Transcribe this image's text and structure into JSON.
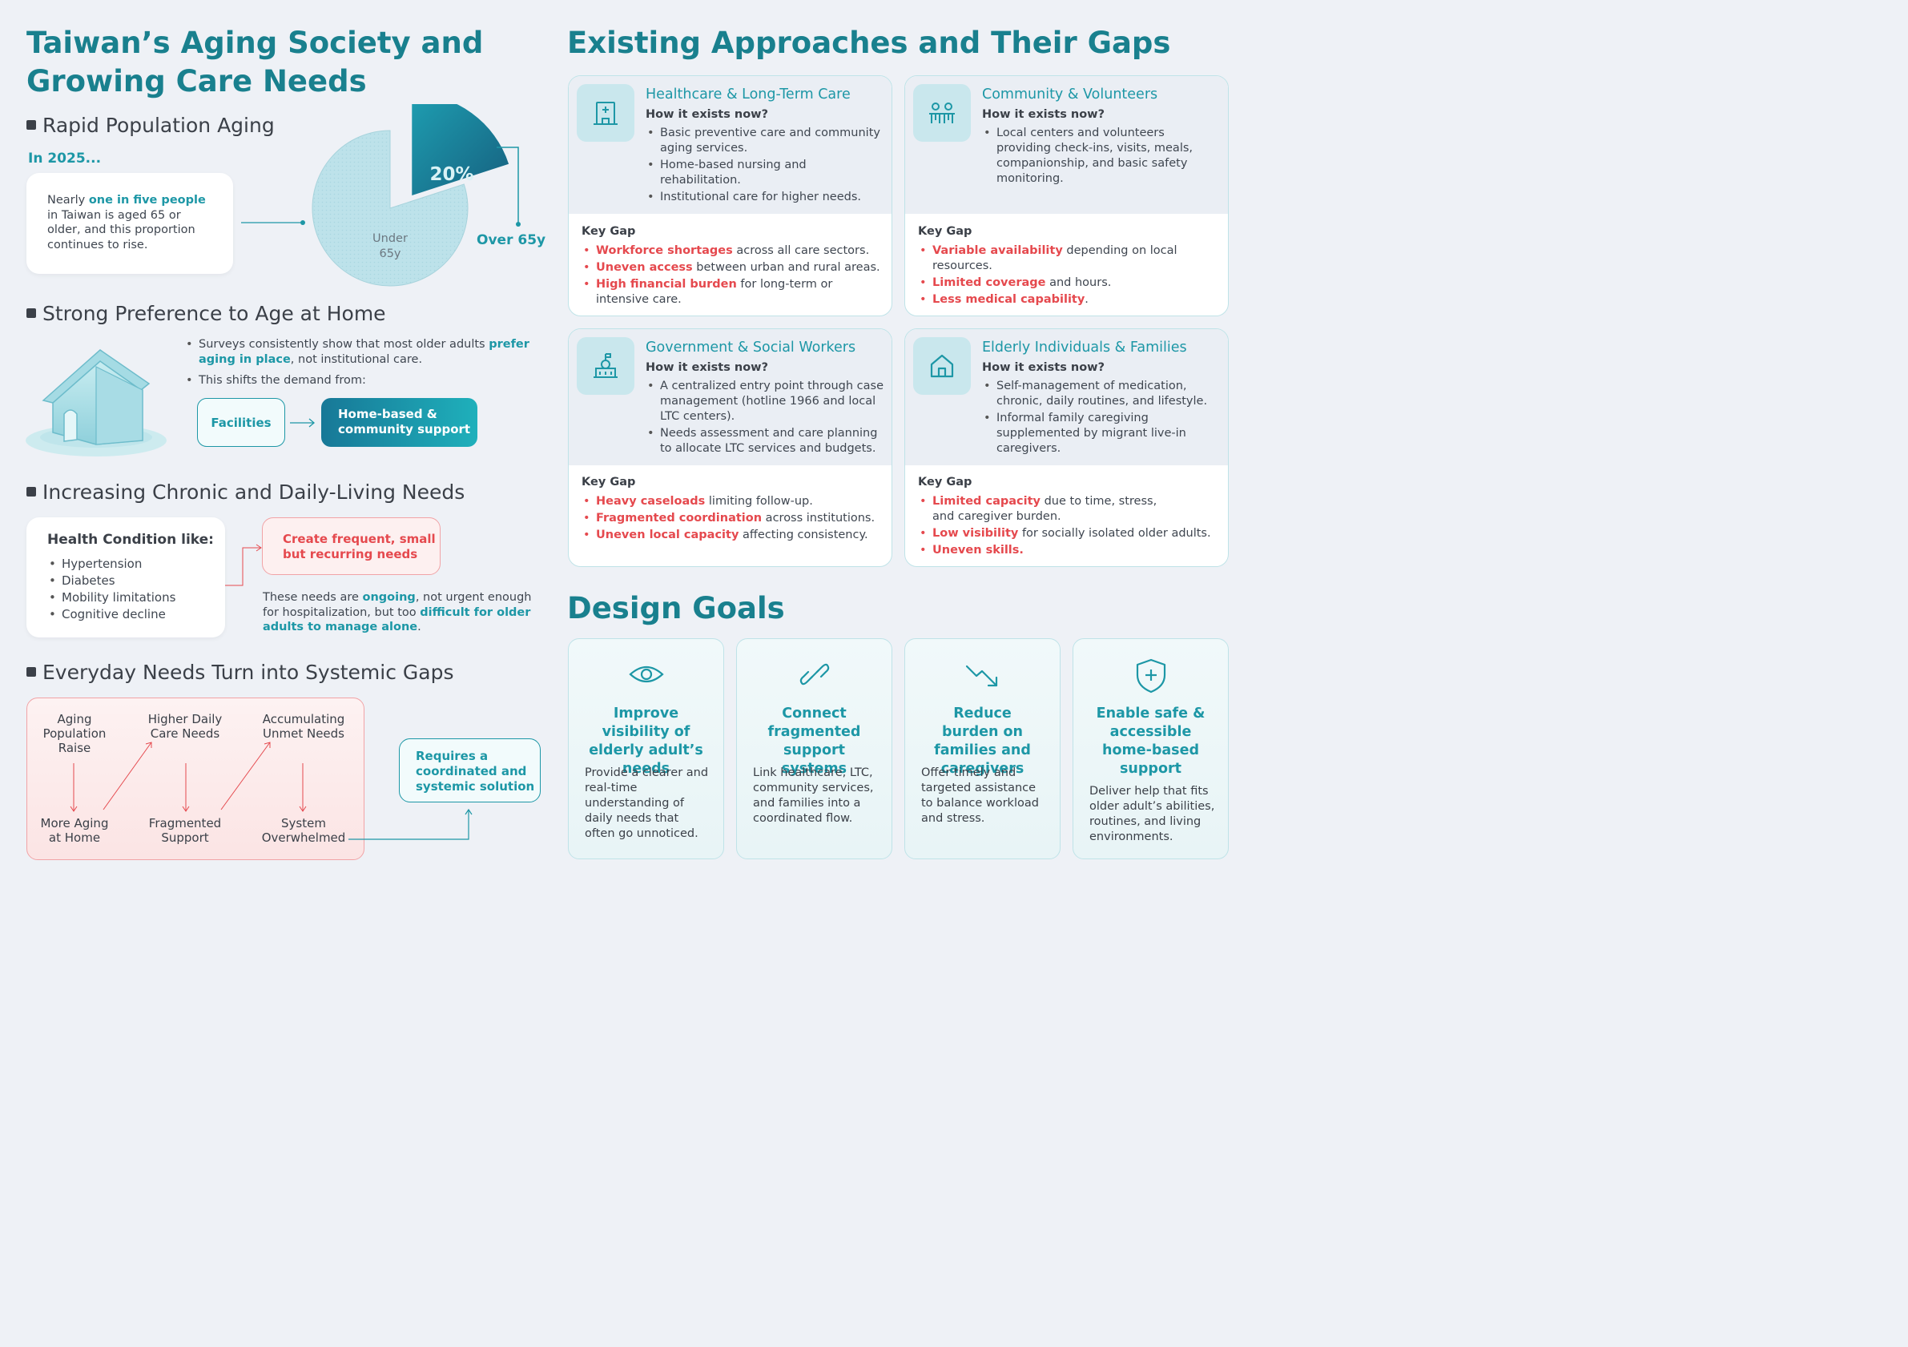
{
  "left": {
    "title_line1": "Taiwan’s Aging Society and",
    "title_line2": "Growing Care Needs",
    "s1": {
      "heading": "Rapid Population Aging",
      "year": "In 2025...",
      "card_pre": "Nearly ",
      "card_hl": "one in five people",
      "card_post": " in Taiwan is aged 65 or older, and this proportion continues to rise.",
      "pie_value": 20,
      "pie_pct": "20%",
      "under_l1": "Under",
      "under_l2": "65y",
      "over": "Over 65y"
    },
    "s2": {
      "heading": "Strong Preference to Age at Home",
      "b1_pre": "Surveys consistently show that most older adults ",
      "b1_hl": "prefer aging in place",
      "b1_post": ", not institutional care.",
      "b2": "This shifts the demand from:",
      "from": "Facilities",
      "to_l1": "Home-based &",
      "to_l2": "community support"
    },
    "s3": {
      "heading": "Increasing Chronic and Daily-Living Needs",
      "card_title": "Health Condition like:",
      "conditions": [
        "Hypertension",
        "Diabetes",
        "Mobility limitations",
        "Cognitive decline"
      ],
      "pink_l1": "Create frequent, small",
      "pink_l2": "but recurring needs",
      "n1": "These needs are ",
      "n_hl1": "ongoing",
      "n2": ", not urgent enough for hospitalization, but too ",
      "n_hl2": "difficult for older adults to manage alone",
      "n3": "."
    },
    "s4": {
      "heading": "Everyday Needs Turn into Systemic Gaps",
      "top": [
        "Aging\nPopulation\nRaise",
        "Higher Daily\nCare Needs",
        "Accumulating\nUnmet Needs"
      ],
      "bottom": [
        "More Aging\nat Home",
        "Fragmented\nSupport",
        "System\nOverwhelmed"
      ],
      "solution_l1": "Requires a",
      "solution_l2": "coordinated and",
      "solution_l3": "systemic solution"
    }
  },
  "right": {
    "title": "Existing Approaches and Their Gaps",
    "how_label": "How it exists now?",
    "gap_label": "Key Gap",
    "cards": [
      {
        "icon": "hospital-icon",
        "title": "Healthcare & Long-Term Care",
        "bullets": [
          "Basic preventive care and community aging services.",
          "Home-based nursing and rehabilitation.",
          "Institutional care for higher needs."
        ],
        "gaps": [
          {
            "hl": "Workforce shortages",
            "rest": " across all care sectors."
          },
          {
            "hl": "Uneven access",
            "rest": " between urban and rural areas."
          },
          {
            "hl": "High financial burden",
            "rest": " for long-term or intensive care."
          }
        ]
      },
      {
        "icon": "people-icon",
        "title": "Community & Volunteers",
        "bullets": [
          "Local centers and volunteers providing check-ins, visits, meals, companionship, and basic safety monitoring."
        ],
        "gaps": [
          {
            "hl": "Variable availability",
            "rest": " depending on local resources."
          },
          {
            "hl": "Limited coverage",
            "rest": " and hours."
          },
          {
            "hl": "Less medical capability",
            "rest": "."
          }
        ]
      },
      {
        "icon": "government-building-icon",
        "title": "Government & Social Workers",
        "bullets": [
          "A centralized entry point through case management (hotline 1966 and local LTC centers).",
          "Needs assessment and care planning to allocate LTC services and budgets."
        ],
        "gaps": [
          {
            "hl": "Heavy caseloads",
            "rest": " limiting follow-up."
          },
          {
            "hl": "Fragmented coordination",
            "rest": " across institutions."
          },
          {
            "hl": "Uneven local capacity",
            "rest": " affecting consistency."
          }
        ]
      },
      {
        "icon": "home-icon",
        "title": "Elderly Individuals & Families",
        "bullets": [
          "Self-management of medication, chronic, daily routines, and lifestyle.",
          "Informal family caregiving supplemented by migrant live-in caregivers."
        ],
        "gaps": [
          {
            "hl": "Limited capacity",
            "rest": " due to time, stress, and caregiver burden."
          },
          {
            "hl": "Low visibility",
            "rest": " for socially isolated older adults."
          },
          {
            "hl": "Uneven skills.",
            "rest": ""
          }
        ]
      }
    ],
    "design_title": "Design Goals",
    "goals": [
      {
        "icon": "eye-icon",
        "title": "Improve visibility of elderly adult’s needs",
        "desc": "Provide a clearer and real-time understanding of daily needs that often go unnoticed."
      },
      {
        "icon": "link-icon",
        "title": "Connect fragmented support systems",
        "desc": "Link healthcare, LTC, community services, and families into a coordinated flow."
      },
      {
        "icon": "trend-down-icon",
        "title": "Reduce burden on families and caregivers",
        "desc": "Offer timely and targeted assistance to balance workload and stress."
      },
      {
        "icon": "shield-plus-icon",
        "title": "Enable safe & accessible home-based support",
        "desc": "Deliver help that fits older adult’s abilities, routines, and living environments."
      }
    ]
  }
}
